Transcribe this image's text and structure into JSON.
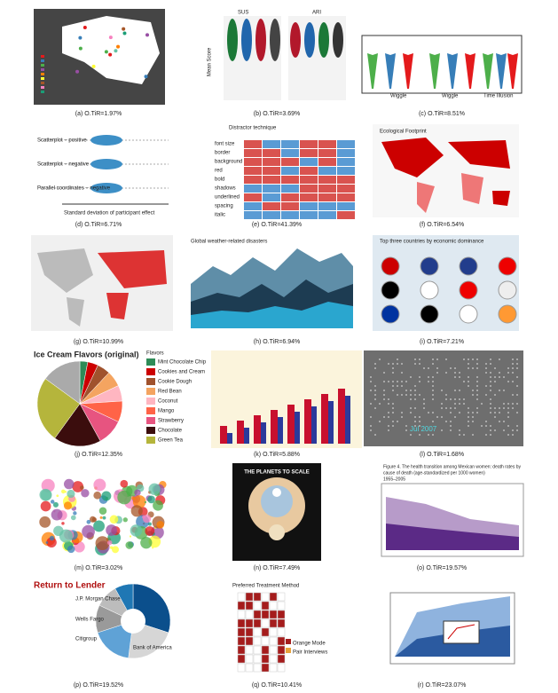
{
  "panels": [
    {
      "caption": "(a) O.TiR=1.97%"
    },
    {
      "caption": "(b) O.TiR=3.69%",
      "texts": [
        "SUS",
        "ARI",
        "Mean Score"
      ]
    },
    {
      "caption": "(c) O.TiR=8.51%",
      "texts": [
        "Wiggle",
        "Wiggle",
        "Time Illusion"
      ]
    },
    {
      "caption": "(d) O.TiR=6.71%",
      "texts": [
        "Scatterplot – positive",
        "Scatterplot – negative",
        "Parallel coordinates – negative",
        "Standard deviation of participant effect"
      ]
    },
    {
      "caption": "(e) O.TiR=41.39%",
      "texts": [
        "Distractor technique",
        "font size",
        "border",
        "background",
        "red",
        "bold",
        "shadows",
        "underlined",
        "spacing",
        "italic"
      ]
    },
    {
      "caption": "(f) O.TiR=6.54%",
      "texts": [
        "Ecological Footprint"
      ]
    },
    {
      "caption": "(g) O.TiR=10.99%"
    },
    {
      "caption": "(h) O.TiR=6.94%",
      "texts": [
        "Global weather-related disasters"
      ]
    },
    {
      "caption": "(i) O.TiR=7.21%",
      "texts": [
        "Top three countries by economic dominance"
      ]
    },
    {
      "caption": "(j) O.TiR=12.35%",
      "texts": [
        "Ice Cream Flavors (original)",
        "Flavors",
        "Mint Chocolate Chip",
        "Cookies and Cream",
        "Cookie Dough",
        "Red Bean",
        "Coconut",
        "Mango",
        "Strawberry",
        "Chocolate",
        "Green Tea"
      ]
    },
    {
      "caption": "(k) O.TiR=5.88%"
    },
    {
      "caption": "(l) O.TiR=1.68%",
      "texts": [
        "Jul 2007"
      ]
    },
    {
      "caption": "(m) O.TiR=3.02%"
    },
    {
      "caption": "(n) O.TiR=7.49%",
      "texts": [
        "THE PLANETS TO SCALE"
      ]
    },
    {
      "caption": "(o) O.TiR=19.57%",
      "texts": [
        "Figure 4. The health transition among Mexican women: death rates by",
        "cause of death (age-standardized per 1000 women)",
        "1955–2005"
      ]
    },
    {
      "caption": "(p) O.TiR=19.52%",
      "texts": [
        "Return to Lender",
        "J.P. Morgan Chase",
        "Wells Fargo",
        "Bank of America",
        "Citigroup"
      ]
    },
    {
      "caption": "(q) O.TiR=10.41%",
      "texts": [
        "Preferred Treatment Method",
        "Orange Mode",
        "Pair Interviews"
      ]
    },
    {
      "caption": "(r) O.TiR=23.07%"
    }
  ]
}
